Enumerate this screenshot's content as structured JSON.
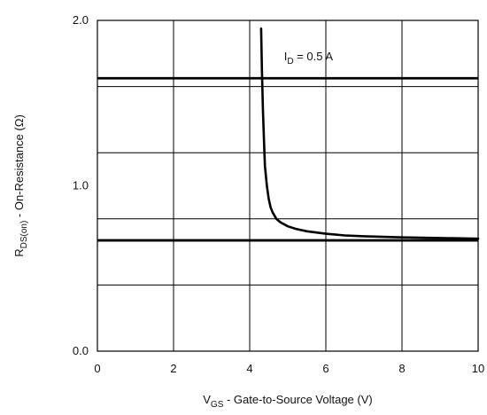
{
  "chart_data": {
    "type": "line",
    "x": [
      4.3,
      4.32,
      4.35,
      4.38,
      4.4,
      4.45,
      4.5,
      4.55,
      4.6,
      4.7,
      4.8,
      5.0,
      5.2,
      5.5,
      6.0,
      6.5,
      7.0,
      8.0,
      9.0,
      10.0
    ],
    "series": [
      {
        "values": [
          1.95,
          1.7,
          1.45,
          1.25,
          1.12,
          1.0,
          0.92,
          0.87,
          0.84,
          0.8,
          0.78,
          0.755,
          0.74,
          0.725,
          0.71,
          0.7,
          0.695,
          0.688,
          0.684,
          0.68
        ]
      }
    ],
    "xlim": [
      0,
      10
    ],
    "ylim": [
      0,
      2
    ],
    "x_ticks": [
      0,
      2,
      4,
      6,
      8,
      10
    ],
    "y_ticks": [
      0,
      1,
      2
    ],
    "x_tick_labels": [
      "0",
      "2",
      "4",
      "6",
      "8",
      "10"
    ],
    "y_tick_labels": [
      "0.0",
      "1.0",
      "2.0"
    ],
    "grid": true,
    "title": "",
    "xlabel": {
      "main": "V",
      "sub": "GS",
      "rest": " - Gate-to-Source Voltage (V)"
    },
    "ylabel": {
      "main": "R",
      "sub": "DS(on)",
      "rest": " - On-Resistance (Ω)"
    },
    "annotation": {
      "main": "I",
      "sub": "D",
      "rest": " = 0.5 A",
      "x": 4.9,
      "y": 1.76
    },
    "reference_lines": [
      0.67,
      1.65
    ]
  }
}
